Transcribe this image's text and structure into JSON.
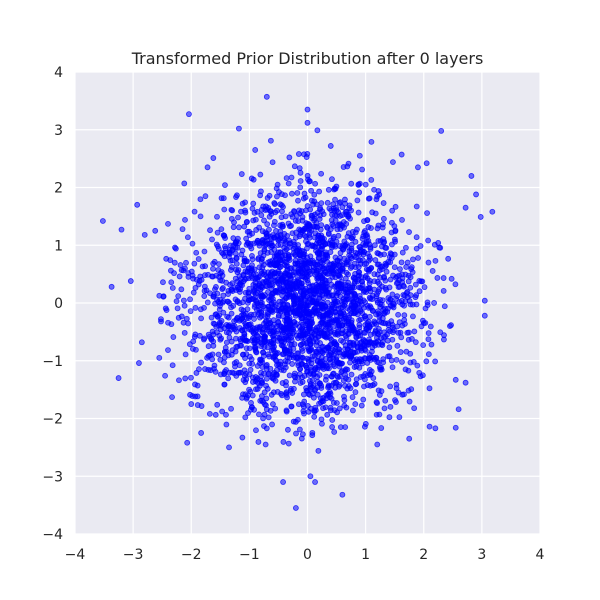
{
  "chart_data": {
    "type": "scatter",
    "title": "Transformed Prior Distribution after 0 layers",
    "xlabel": "",
    "ylabel": "",
    "xlim": [
      -4,
      4
    ],
    "ylim": [
      -4,
      4
    ],
    "x_ticks": [
      -4,
      -3,
      -2,
      -1,
      0,
      1,
      2,
      3,
      4
    ],
    "y_ticks": [
      -4,
      -3,
      -2,
      -1,
      0,
      1,
      2,
      3,
      4
    ],
    "x_tick_labels": [
      "−4",
      "−3",
      "−2",
      "−1",
      "0",
      "1",
      "2",
      "3",
      "4"
    ],
    "y_tick_labels": [
      "−4",
      "−3",
      "−2",
      "−1",
      "0",
      "1",
      "2",
      "3",
      "4"
    ],
    "grid": true,
    "colors": {
      "point": "#0000ff",
      "plot_background": "#eaeaf2",
      "grid": "#ffffff"
    },
    "series": [
      {
        "points": [
          [
            -3.52,
            1.42
          ],
          [
            -3.37,
            0.28
          ],
          [
            -3.25,
            -1.3
          ],
          [
            -3.2,
            1.27
          ],
          [
            -3.04,
            0.38
          ],
          [
            -2.93,
            1.7
          ],
          [
            -2.9,
            -1.04
          ],
          [
            -2.85,
            -0.68
          ],
          [
            -2.8,
            1.18
          ],
          [
            -2.62,
            1.25
          ],
          [
            -2.55,
            -0.95
          ],
          [
            -2.52,
            -0.32
          ],
          [
            -2.45,
            -1.26
          ],
          [
            -2.4,
            1.37
          ],
          [
            -2.35,
            0.56
          ],
          [
            -2.33,
            -1.63
          ],
          [
            -2.28,
            0.96
          ],
          [
            -2.2,
            0.46
          ],
          [
            -2.12,
            2.07
          ],
          [
            -2.07,
            -2.42
          ],
          [
            -2.04,
            3.27
          ],
          [
            -2.0,
            -1.75
          ],
          [
            -1.92,
            -0.81
          ],
          [
            -1.84,
            1.5
          ],
          [
            -1.83,
            -2.25
          ],
          [
            -1.72,
            2.35
          ],
          [
            -1.68,
            -1.92
          ],
          [
            -1.62,
            2.51
          ],
          [
            -1.55,
            0.16
          ],
          [
            -1.42,
            0.98
          ],
          [
            -1.35,
            -2.5
          ],
          [
            -1.18,
            3.02
          ],
          [
            -1.12,
            -2.33
          ],
          [
            -0.9,
            2.65
          ],
          [
            -0.72,
            -2.45
          ],
          [
            -0.7,
            3.57
          ],
          [
            -0.63,
            2.81
          ],
          [
            -0.42,
            -3.1
          ],
          [
            -0.2,
            -3.55
          ],
          [
            0.0,
            3.35
          ],
          [
            0.0,
            3.12
          ],
          [
            0.05,
            -3.0
          ],
          [
            0.13,
            -3.1
          ],
          [
            0.17,
            2.99
          ],
          [
            0.4,
            2.72
          ],
          [
            0.6,
            -3.32
          ],
          [
            0.9,
            2.55
          ],
          [
            1.1,
            2.79
          ],
          [
            1.2,
            -2.45
          ],
          [
            1.47,
            2.44
          ],
          [
            1.62,
            2.57
          ],
          [
            1.75,
            -2.35
          ],
          [
            1.9,
            2.35
          ],
          [
            2.05,
            2.42
          ],
          [
            2.1,
            -2.14
          ],
          [
            2.2,
            -2.17
          ],
          [
            2.3,
            2.98
          ],
          [
            2.45,
            2.45
          ],
          [
            2.55,
            -2.16
          ],
          [
            2.6,
            -1.84
          ],
          [
            2.72,
            1.65
          ],
          [
            2.82,
            2.2
          ],
          [
            2.9,
            1.88
          ],
          [
            2.98,
            1.49
          ],
          [
            3.05,
            0.04
          ],
          [
            3.05,
            -0.22
          ],
          [
            3.18,
            1.58
          ],
          [
            2.72,
            -1.38
          ],
          [
            2.55,
            -1.33
          ],
          [
            2.45,
            -0.4
          ]
        ]
      }
    ],
    "bulk": {
      "count": 2930,
      "distribution": "standard normal",
      "mean": [
        0,
        0
      ],
      "std": [
        1,
        1
      ]
    }
  }
}
